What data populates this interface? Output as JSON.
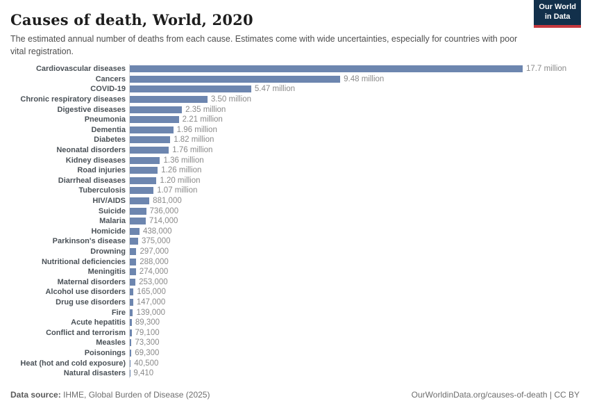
{
  "header": {
    "title": "Causes of death, World, 2020",
    "subtitle": "The estimated annual number of deaths from each cause. Estimates come with wide uncertainties, especially for countries with poor vital registration.",
    "logo": {
      "line1": "Our World",
      "line2": "in Data"
    }
  },
  "chart_data": {
    "type": "bar",
    "orientation": "horizontal",
    "title": "Causes of death, World, 2020",
    "xlabel": "",
    "ylabel": "",
    "xlim": [
      0,
      17700000
    ],
    "grid": false,
    "legend": false,
    "bar_color": "#6d86af",
    "categories": [
      "Cardiovascular diseases",
      "Cancers",
      "COVID-19",
      "Chronic respiratory diseases",
      "Digestive diseases",
      "Pneumonia",
      "Dementia",
      "Diabetes",
      "Neonatal disorders",
      "Kidney diseases",
      "Road injuries",
      "Diarrheal diseases",
      "Tuberculosis",
      "HIV/AIDS",
      "Suicide",
      "Malaria",
      "Homicide",
      "Parkinson's disease",
      "Drowning",
      "Nutritional deficiencies",
      "Meningitis",
      "Maternal disorders",
      "Alcohol use disorders",
      "Drug use disorders",
      "Fire",
      "Acute hepatitis",
      "Conflict and terrorism",
      "Measles",
      "Poisonings",
      "Heat (hot and cold exposure)",
      "Natural disasters"
    ],
    "values": [
      17700000,
      9480000,
      5470000,
      3500000,
      2350000,
      2210000,
      1960000,
      1820000,
      1760000,
      1360000,
      1260000,
      1200000,
      1070000,
      881000,
      736000,
      714000,
      438000,
      375000,
      297000,
      288000,
      274000,
      253000,
      165000,
      147000,
      139000,
      89300,
      79100,
      73300,
      69300,
      40500,
      9410
    ],
    "value_labels": [
      "17.7 million",
      "9.48 million",
      "5.47 million",
      "3.50 million",
      "2.35 million",
      "2.21 million",
      "1.96 million",
      "1.82 million",
      "1.76 million",
      "1.36 million",
      "1.26 million",
      "1.20 million",
      "1.07 million",
      "881,000",
      "736,000",
      "714,000",
      "438,000",
      "375,000",
      "297,000",
      "288,000",
      "274,000",
      "253,000",
      "165,000",
      "147,000",
      "139,000",
      "89,300",
      "79,100",
      "73,300",
      "69,300",
      "40,500",
      "9,410"
    ]
  },
  "footer": {
    "datasource_label": "Data source:",
    "datasource_text": " IHME, Global Burden of Disease (2025)",
    "link": "OurWorldinData.org/causes-of-death | CC BY"
  },
  "colors": {
    "bar": "#6d86af",
    "axis_line": "#d9d9d9",
    "category_label": "#4a5157",
    "value_label": "#8a8a8a",
    "logo_bg": "#12304b",
    "logo_underline": "#c5383e"
  }
}
